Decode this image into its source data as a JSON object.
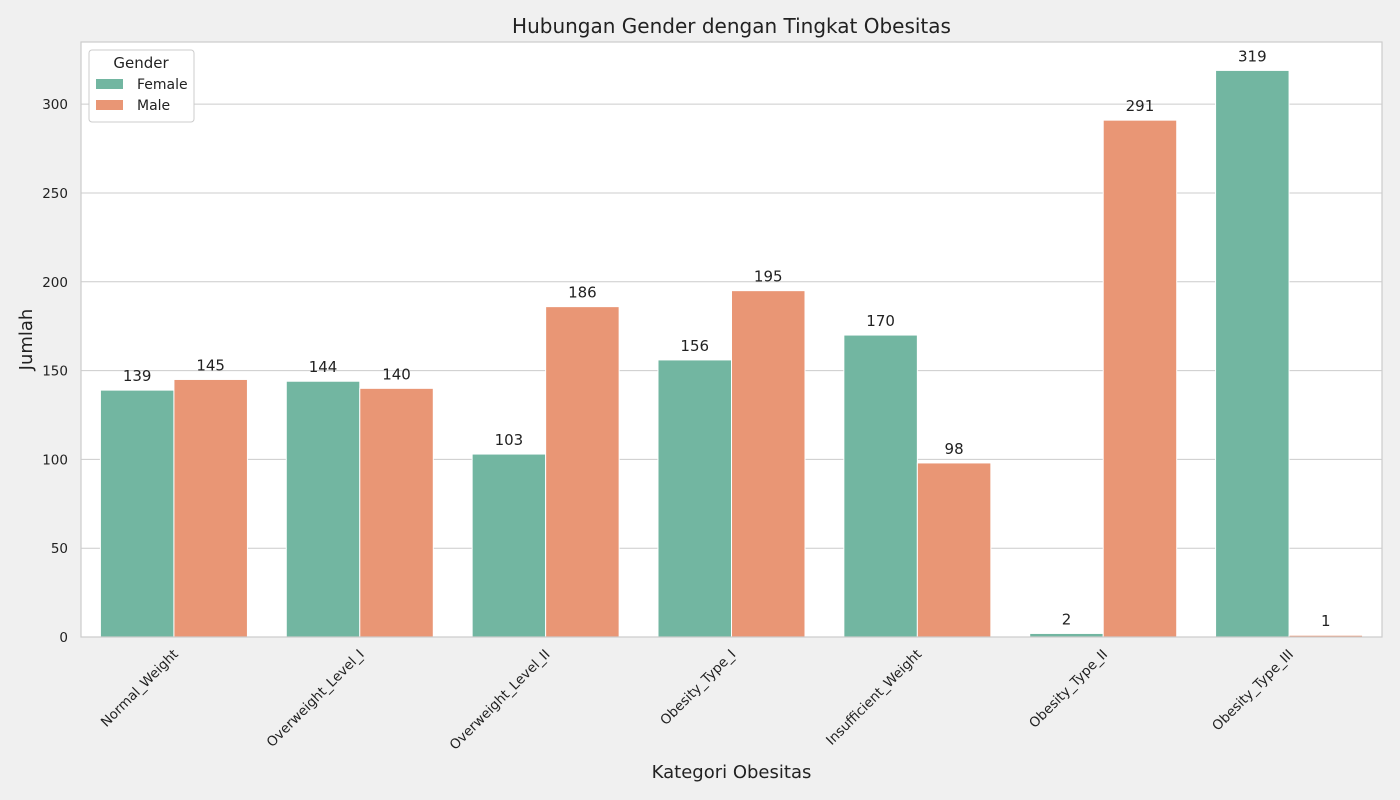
{
  "chart_data": {
    "type": "bar",
    "title": "Hubungan Gender dengan Tingkat Obesitas",
    "xlabel": "Kategori Obesitas",
    "ylabel": "Jumlah",
    "categories": [
      "Normal_Weight",
      "Overweight_Level_I",
      "Overweight_Level_II",
      "Obesity_Type_I",
      "Insufficient_Weight",
      "Obesity_Type_II",
      "Obesity_Type_III"
    ],
    "series": [
      {
        "name": "Female",
        "color": "#72b6a1",
        "values": [
          139,
          144,
          103,
          156,
          170,
          2,
          319
        ]
      },
      {
        "name": "Male",
        "color": "#e99675",
        "values": [
          145,
          140,
          186,
          195,
          98,
          291,
          1
        ]
      }
    ],
    "ylim": [
      0,
      335
    ],
    "yticks": [
      0,
      50,
      100,
      150,
      200,
      250,
      300
    ],
    "grid": true,
    "legend": {
      "title": "Gender",
      "placement": "top-left"
    }
  }
}
